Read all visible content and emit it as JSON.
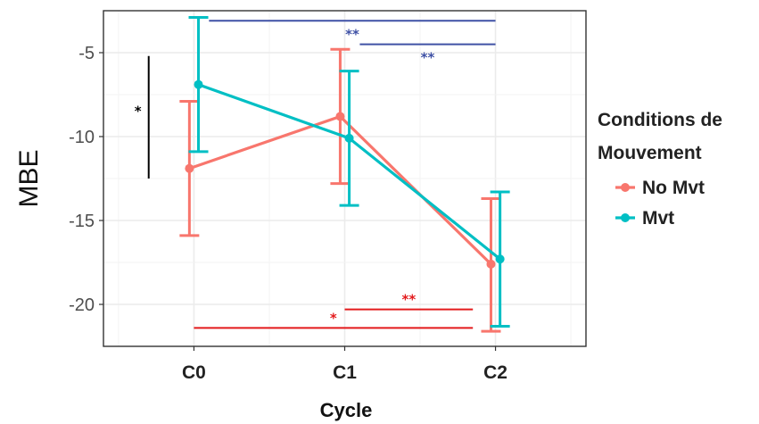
{
  "chart_data": {
    "type": "line",
    "xlabel": "Cycle",
    "ylabel": "MBE",
    "categories": [
      "C0",
      "C1",
      "C2"
    ],
    "ylim": [
      -22.5,
      -2.5
    ],
    "yticks": [
      -5,
      -10,
      -15,
      -20
    ],
    "grid": true,
    "legend": {
      "title_lines": [
        "Conditions de",
        "Mouvement"
      ],
      "placement": "right"
    },
    "series": [
      {
        "name": "No Mvt",
        "color": "#f8766d",
        "values": [
          -11.9,
          -8.8,
          -17.6
        ],
        "error_low": [
          -15.9,
          -12.8,
          -21.6
        ],
        "error_high": [
          -7.9,
          -4.8,
          -13.7
        ]
      },
      {
        "name": "Mvt",
        "color": "#00bfc4",
        "values": [
          -6.9,
          -10.1,
          -17.3
        ],
        "error_low": [
          -10.9,
          -14.1,
          -21.3
        ],
        "error_high": [
          -2.9,
          -6.1,
          -13.3
        ]
      }
    ],
    "annotations": [
      {
        "type": "hbar",
        "label": "**",
        "color": "#3f51a5",
        "x_start": 0.1,
        "x_end": 2.0,
        "y": -3.1
      },
      {
        "type": "hbar",
        "label": "**",
        "color": "#3f51a5",
        "x_start": 1.1,
        "x_end": 2.0,
        "y": -4.5
      },
      {
        "type": "vbar",
        "label": "*",
        "color": "#000000",
        "x": -0.3,
        "y_start": -5.2,
        "y_end": -12.5
      },
      {
        "type": "hbar",
        "label": "**",
        "color": "#e31a1c",
        "x_start": 1.0,
        "x_end": 1.85,
        "y": -20.3
      },
      {
        "type": "hbar",
        "label": "*",
        "color": "#e31a1c",
        "x_start": 0.0,
        "x_end": 1.85,
        "y": -21.4
      }
    ]
  }
}
